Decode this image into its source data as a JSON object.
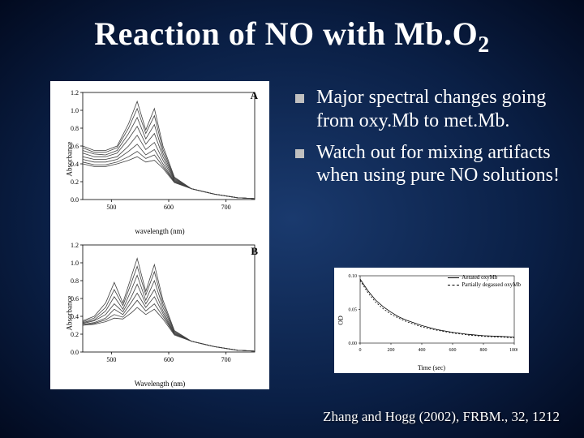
{
  "title_html": "Reaction of NO with Mb.O<sub>2</sub>",
  "bullets": [
    "Major spectral changes going from oxy.Mb to met.Mb.",
    "Watch out for mixing artifacts when using pure NO solutions!"
  ],
  "citation": "Zhang and Hogg (2002), FRBM., 32, 1212",
  "left_panel_top": {
    "label": "A",
    "ylabel": "Absorbance",
    "xlabel": "wavelength (nm)",
    "xlim": [
      450,
      750
    ],
    "ylim": [
      0,
      1.2
    ],
    "xticks": [
      500,
      600,
      700
    ],
    "yticks": [
      0.0,
      0.2,
      0.4,
      0.6,
      0.8,
      1.0,
      1.2
    ],
    "line_color": "#404040",
    "background_color": "#ffffff",
    "line_width": 0.8,
    "curves": [
      [
        [
          450,
          0.6
        ],
        [
          470,
          0.55
        ],
        [
          490,
          0.55
        ],
        [
          510,
          0.6
        ],
        [
          530,
          0.85
        ],
        [
          545,
          1.1
        ],
        [
          560,
          0.78
        ],
        [
          575,
          1.02
        ],
        [
          590,
          0.6
        ],
        [
          610,
          0.25
        ],
        [
          640,
          0.12
        ],
        [
          680,
          0.06
        ],
        [
          720,
          0.02
        ],
        [
          750,
          0.01
        ]
      ],
      [
        [
          450,
          0.58
        ],
        [
          470,
          0.53
        ],
        [
          490,
          0.53
        ],
        [
          510,
          0.58
        ],
        [
          530,
          0.8
        ],
        [
          545,
          1.02
        ],
        [
          560,
          0.74
        ],
        [
          575,
          0.94
        ],
        [
          590,
          0.56
        ],
        [
          610,
          0.24
        ],
        [
          640,
          0.12
        ],
        [
          680,
          0.06
        ],
        [
          720,
          0.02
        ],
        [
          750,
          0.01
        ]
      ],
      [
        [
          450,
          0.55
        ],
        [
          470,
          0.51
        ],
        [
          490,
          0.5
        ],
        [
          510,
          0.55
        ],
        [
          530,
          0.74
        ],
        [
          545,
          0.92
        ],
        [
          560,
          0.68
        ],
        [
          575,
          0.84
        ],
        [
          590,
          0.52
        ],
        [
          610,
          0.23
        ],
        [
          640,
          0.12
        ],
        [
          680,
          0.06
        ],
        [
          720,
          0.02
        ],
        [
          750,
          0.01
        ]
      ],
      [
        [
          450,
          0.52
        ],
        [
          470,
          0.48
        ],
        [
          490,
          0.48
        ],
        [
          510,
          0.52
        ],
        [
          530,
          0.68
        ],
        [
          545,
          0.82
        ],
        [
          560,
          0.62
        ],
        [
          575,
          0.74
        ],
        [
          590,
          0.48
        ],
        [
          610,
          0.22
        ],
        [
          640,
          0.12
        ],
        [
          680,
          0.06
        ],
        [
          720,
          0.02
        ],
        [
          750,
          0.01
        ]
      ],
      [
        [
          450,
          0.48
        ],
        [
          470,
          0.45
        ],
        [
          490,
          0.45
        ],
        [
          510,
          0.48
        ],
        [
          530,
          0.6
        ],
        [
          545,
          0.72
        ],
        [
          560,
          0.56
        ],
        [
          575,
          0.64
        ],
        [
          590,
          0.44
        ],
        [
          610,
          0.21
        ],
        [
          640,
          0.12
        ],
        [
          680,
          0.06
        ],
        [
          720,
          0.02
        ],
        [
          750,
          0.01
        ]
      ],
      [
        [
          450,
          0.45
        ],
        [
          470,
          0.42
        ],
        [
          490,
          0.42
        ],
        [
          510,
          0.45
        ],
        [
          530,
          0.54
        ],
        [
          545,
          0.62
        ],
        [
          560,
          0.5
        ],
        [
          575,
          0.56
        ],
        [
          590,
          0.4
        ],
        [
          610,
          0.2
        ],
        [
          640,
          0.12
        ],
        [
          680,
          0.06
        ],
        [
          720,
          0.02
        ],
        [
          750,
          0.01
        ]
      ],
      [
        [
          450,
          0.42
        ],
        [
          470,
          0.39
        ],
        [
          490,
          0.39
        ],
        [
          510,
          0.42
        ],
        [
          530,
          0.48
        ],
        [
          545,
          0.54
        ],
        [
          560,
          0.46
        ],
        [
          575,
          0.5
        ],
        [
          590,
          0.37
        ],
        [
          610,
          0.2
        ],
        [
          640,
          0.12
        ],
        [
          680,
          0.06
        ],
        [
          720,
          0.02
        ],
        [
          750,
          0.01
        ]
      ],
      [
        [
          450,
          0.4
        ],
        [
          470,
          0.37
        ],
        [
          490,
          0.37
        ],
        [
          510,
          0.4
        ],
        [
          530,
          0.44
        ],
        [
          545,
          0.48
        ],
        [
          560,
          0.42
        ],
        [
          575,
          0.44
        ],
        [
          590,
          0.35
        ],
        [
          610,
          0.19
        ],
        [
          640,
          0.12
        ],
        [
          680,
          0.06
        ],
        [
          720,
          0.02
        ],
        [
          750,
          0.01
        ]
      ]
    ]
  },
  "left_panel_bottom": {
    "label": "B",
    "ylabel": "Absorbance",
    "xlabel": "Wavelength (nm)",
    "xlim": [
      450,
      750
    ],
    "ylim": [
      0,
      1.2
    ],
    "xticks": [
      500,
      600,
      700
    ],
    "yticks": [
      0.0,
      0.2,
      0.4,
      0.6,
      0.8,
      1.0,
      1.2
    ],
    "line_color": "#404040",
    "background_color": "#ffffff",
    "line_width": 0.8,
    "curves": [
      [
        [
          450,
          0.35
        ],
        [
          470,
          0.4
        ],
        [
          490,
          0.55
        ],
        [
          505,
          0.78
        ],
        [
          520,
          0.55
        ],
        [
          535,
          0.85
        ],
        [
          545,
          1.05
        ],
        [
          560,
          0.68
        ],
        [
          575,
          0.98
        ],
        [
          590,
          0.58
        ],
        [
          610,
          0.24
        ],
        [
          640,
          0.12
        ],
        [
          680,
          0.06
        ],
        [
          720,
          0.02
        ],
        [
          750,
          0.01
        ]
      ],
      [
        [
          450,
          0.34
        ],
        [
          470,
          0.38
        ],
        [
          490,
          0.5
        ],
        [
          505,
          0.7
        ],
        [
          520,
          0.52
        ],
        [
          535,
          0.78
        ],
        [
          545,
          0.96
        ],
        [
          560,
          0.64
        ],
        [
          575,
          0.9
        ],
        [
          590,
          0.54
        ],
        [
          610,
          0.23
        ],
        [
          640,
          0.12
        ],
        [
          680,
          0.06
        ],
        [
          720,
          0.02
        ],
        [
          750,
          0.01
        ]
      ],
      [
        [
          450,
          0.33
        ],
        [
          470,
          0.36
        ],
        [
          490,
          0.46
        ],
        [
          505,
          0.62
        ],
        [
          520,
          0.48
        ],
        [
          535,
          0.7
        ],
        [
          545,
          0.86
        ],
        [
          560,
          0.58
        ],
        [
          575,
          0.8
        ],
        [
          590,
          0.5
        ],
        [
          610,
          0.22
        ],
        [
          640,
          0.12
        ],
        [
          680,
          0.06
        ],
        [
          720,
          0.02
        ],
        [
          750,
          0.01
        ]
      ],
      [
        [
          450,
          0.32
        ],
        [
          470,
          0.35
        ],
        [
          490,
          0.42
        ],
        [
          505,
          0.54
        ],
        [
          520,
          0.45
        ],
        [
          535,
          0.62
        ],
        [
          545,
          0.76
        ],
        [
          560,
          0.54
        ],
        [
          575,
          0.7
        ],
        [
          590,
          0.46
        ],
        [
          610,
          0.21
        ],
        [
          640,
          0.12
        ],
        [
          680,
          0.06
        ],
        [
          720,
          0.02
        ],
        [
          750,
          0.01
        ]
      ],
      [
        [
          450,
          0.31
        ],
        [
          470,
          0.33
        ],
        [
          490,
          0.38
        ],
        [
          505,
          0.48
        ],
        [
          520,
          0.42
        ],
        [
          535,
          0.56
        ],
        [
          545,
          0.66
        ],
        [
          560,
          0.5
        ],
        [
          575,
          0.62
        ],
        [
          590,
          0.43
        ],
        [
          610,
          0.2
        ],
        [
          640,
          0.12
        ],
        [
          680,
          0.06
        ],
        [
          720,
          0.02
        ],
        [
          750,
          0.01
        ]
      ],
      [
        [
          450,
          0.3
        ],
        [
          470,
          0.32
        ],
        [
          490,
          0.36
        ],
        [
          505,
          0.42
        ],
        [
          520,
          0.39
        ],
        [
          535,
          0.5
        ],
        [
          545,
          0.58
        ],
        [
          560,
          0.46
        ],
        [
          575,
          0.54
        ],
        [
          590,
          0.4
        ],
        [
          610,
          0.2
        ],
        [
          640,
          0.12
        ],
        [
          680,
          0.06
        ],
        [
          720,
          0.02
        ],
        [
          750,
          0.01
        ]
      ],
      [
        [
          450,
          0.3
        ],
        [
          470,
          0.31
        ],
        [
          490,
          0.34
        ],
        [
          505,
          0.38
        ],
        [
          520,
          0.37
        ],
        [
          535,
          0.44
        ],
        [
          545,
          0.5
        ],
        [
          560,
          0.42
        ],
        [
          575,
          0.48
        ],
        [
          590,
          0.37
        ],
        [
          610,
          0.19
        ],
        [
          640,
          0.12
        ],
        [
          680,
          0.06
        ],
        [
          720,
          0.02
        ],
        [
          750,
          0.01
        ]
      ]
    ]
  },
  "inset_chart": {
    "type": "line",
    "ylabel": "OD",
    "xlabel": "Time (sec)",
    "xlim": [
      0,
      1000
    ],
    "ylim": [
      0,
      0.1
    ],
    "legend": [
      "Aerated oxyMb",
      "Partially degassed oxyMb"
    ],
    "line_color": "#000000",
    "background_color": "#ffffff",
    "curve1": [
      [
        0,
        0.095
      ],
      [
        50,
        0.078
      ],
      [
        100,
        0.064
      ],
      [
        150,
        0.054
      ],
      [
        200,
        0.046
      ],
      [
        250,
        0.039
      ],
      [
        300,
        0.034
      ],
      [
        400,
        0.026
      ],
      [
        500,
        0.02
      ],
      [
        600,
        0.016
      ],
      [
        700,
        0.013
      ],
      [
        800,
        0.011
      ],
      [
        900,
        0.01
      ],
      [
        1000,
        0.009
      ]
    ],
    "curve2": [
      [
        0,
        0.093
      ],
      [
        50,
        0.075
      ],
      [
        100,
        0.061
      ],
      [
        150,
        0.051
      ],
      [
        200,
        0.043
      ],
      [
        250,
        0.037
      ],
      [
        300,
        0.032
      ],
      [
        400,
        0.024
      ],
      [
        500,
        0.019
      ],
      [
        600,
        0.015
      ],
      [
        700,
        0.012
      ],
      [
        800,
        0.01
      ],
      [
        900,
        0.009
      ],
      [
        1000,
        0.008
      ]
    ]
  },
  "colors": {
    "slide_bg_center": "#1a3a6e",
    "slide_bg_edge": "#020a1f",
    "text": "#ffffff",
    "bullet_square": "#c0c0c0",
    "chart_bg": "#ffffff",
    "chart_line": "#404040"
  },
  "fonts": {
    "title_size_pt": 30,
    "body_size_pt": 18,
    "citation_size_pt": 13,
    "family": "Times New Roman"
  }
}
